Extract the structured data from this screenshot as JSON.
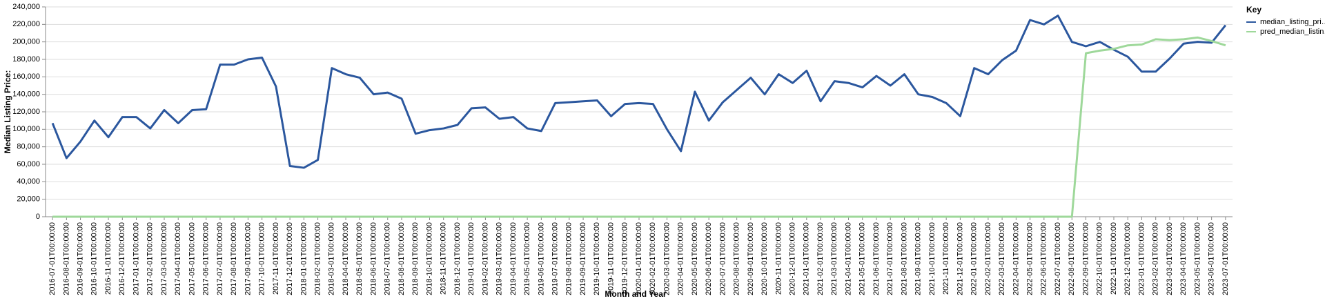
{
  "chart_data": {
    "type": "line",
    "x_label": "Month and Year",
    "y_label": "Median Listing Price:",
    "legend_title": "Key",
    "legend": "right",
    "grid": true,
    "categories": [
      "2016-07-01T00:00:00",
      "2016-08-01T00:00:00",
      "2016-09-01T00:00:00",
      "2016-10-01T00:00:00",
      "2016-11-01T00:00:00",
      "2016-12-01T00:00:00",
      "2017-01-01T00:00:00",
      "2017-02-01T00:00:00",
      "2017-03-01T00:00:00",
      "2017-04-01T00:00:00",
      "2017-05-01T00:00:00",
      "2017-06-01T00:00:00",
      "2017-07-01T00:00:00",
      "2017-08-01T00:00:00",
      "2017-09-01T00:00:00",
      "2017-10-01T00:00:00",
      "2017-11-01T00:00:00",
      "2017-12-01T00:00:00",
      "2018-01-01T00:00:00",
      "2018-02-01T00:00:00",
      "2018-03-01T00:00:00",
      "2018-04-01T00:00:00",
      "2018-05-01T00:00:00",
      "2018-06-01T00:00:00",
      "2018-07-01T00:00:00",
      "2018-08-01T00:00:00",
      "2018-09-01T00:00:00",
      "2018-10-01T00:00:00",
      "2018-11-01T00:00:00",
      "2018-12-01T00:00:00",
      "2019-01-01T00:00:00",
      "2019-02-01T00:00:00",
      "2019-03-01T00:00:00",
      "2019-04-01T00:00:00",
      "2019-05-01T00:00:00",
      "2019-06-01T00:00:00",
      "2019-07-01T00:00:00",
      "2019-08-01T00:00:00",
      "2019-09-01T00:00:00",
      "2019-10-01T00:00:00",
      "2019-11-01T00:00:00",
      "2019-12-01T00:00:00",
      "2020-01-01T00:00:00",
      "2020-02-01T00:00:00",
      "2020-03-01T00:00:00",
      "2020-04-01T00:00:00",
      "2020-05-01T00:00:00",
      "2020-06-01T00:00:00",
      "2020-07-01T00:00:00",
      "2020-08-01T00:00:00",
      "2020-09-01T00:00:00",
      "2020-10-01T00:00:00",
      "2020-11-01T00:00:00",
      "2020-12-01T00:00:00",
      "2021-01-01T00:00:00",
      "2021-02-01T00:00:00",
      "2021-03-01T00:00:00",
      "2021-04-01T00:00:00",
      "2021-05-01T00:00:00",
      "2021-06-01T00:00:00",
      "2021-07-01T00:00:00",
      "2021-08-01T00:00:00",
      "2021-09-01T00:00:00",
      "2021-10-01T00:00:00",
      "2021-11-01T00:00:00",
      "2021-12-01T00:00:00",
      "2022-01-01T00:00:00",
      "2022-02-01T00:00:00",
      "2022-03-01T00:00:00",
      "2022-04-01T00:00:00",
      "2022-05-01T00:00:00",
      "2022-06-01T00:00:00",
      "2022-07-01T00:00:00",
      "2022-08-01T00:00:00",
      "2022-09-01T00:00:00",
      "2022-10-01T00:00:00",
      "2022-11-01T00:00:00",
      "2022-12-01T00:00:00",
      "2023-01-01T00:00:00",
      "2023-02-01T00:00:00",
      "2023-03-01T00:00:00",
      "2023-04-01T00:00:00",
      "2023-05-01T00:00:00",
      "2023-06-01T00:00:00",
      "2023-07-01T00:00:00"
    ],
    "series": [
      {
        "name": "median_listing_pri…",
        "color": "#2b579e",
        "values": [
          107000,
          67000,
          86000,
          110000,
          91000,
          114000,
          114000,
          101000,
          122000,
          107000,
          122000,
          123000,
          174000,
          174000,
          180000,
          182000,
          149000,
          58000,
          56000,
          65000,
          170000,
          163000,
          159000,
          140000,
          142000,
          135000,
          95000,
          99000,
          101000,
          105000,
          124000,
          125000,
          112000,
          114000,
          101000,
          98000,
          130000,
          131000,
          132000,
          133000,
          115000,
          129000,
          130000,
          129000,
          100000,
          75000,
          143000,
          110000,
          131000,
          145000,
          159000,
          140000,
          163000,
          153000,
          167000,
          132000,
          155000,
          153000,
          148000,
          161000,
          150000,
          163000,
          140000,
          137000,
          130000,
          115000,
          170000,
          163000,
          179000,
          190000,
          225000,
          220000,
          230000,
          200000,
          195000,
          200000,
          191000,
          183000,
          166000,
          166000,
          181000,
          198000,
          200000,
          199000,
          219000
        ]
      },
      {
        "name": "pred_median_listin…",
        "color": "#9ed89a",
        "values": [
          0,
          0,
          0,
          0,
          0,
          0,
          0,
          0,
          0,
          0,
          0,
          0,
          0,
          0,
          0,
          0,
          0,
          0,
          0,
          0,
          0,
          0,
          0,
          0,
          0,
          0,
          0,
          0,
          0,
          0,
          0,
          0,
          0,
          0,
          0,
          0,
          0,
          0,
          0,
          0,
          0,
          0,
          0,
          0,
          0,
          0,
          0,
          0,
          0,
          0,
          0,
          0,
          0,
          0,
          0,
          0,
          0,
          0,
          0,
          0,
          0,
          0,
          0,
          0,
          0,
          0,
          0,
          0,
          0,
          0,
          0,
          0,
          0,
          0,
          187000,
          190000,
          192000,
          196000,
          197000,
          203000,
          202000,
          203000,
          205000,
          201000,
          196000
        ]
      }
    ],
    "ylim": [
      0,
      240000
    ],
    "yticks": [
      0,
      {
        "value": 20000,
        "label": "20,000"
      },
      {
        "value": 40000,
        "label": "40,000"
      },
      {
        "value": 60000,
        "label": "60,000"
      },
      {
        "value": 80000,
        "label": "80,000"
      },
      {
        "value": 100000,
        "label": "100,000"
      },
      {
        "value": 120000,
        "label": "120,000"
      },
      {
        "value": 140000,
        "label": "140,000"
      },
      {
        "value": 160000,
        "label": "160,000"
      },
      {
        "value": 180000,
        "label": "180,000"
      },
      {
        "value": 200000,
        "label": "200,000"
      },
      {
        "value": 220000,
        "label": "220,000"
      },
      {
        "value": 240000,
        "label": "240,000"
      }
    ]
  }
}
